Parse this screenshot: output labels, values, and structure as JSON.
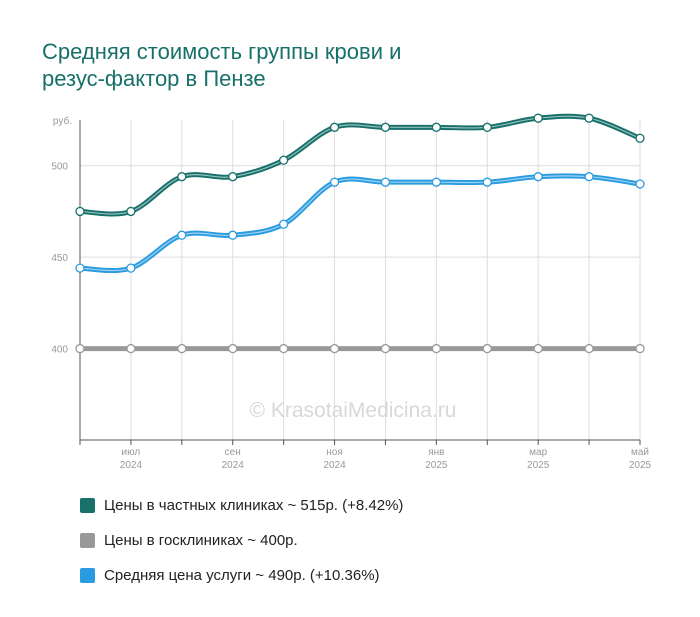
{
  "header": {
    "title_line1": "Средняя стоимость группы крови и",
    "title_line2": "резус-фактор в Пензе"
  },
  "watermark": "© KrasotaiMedicina.ru",
  "colors": {
    "private": "#17706a",
    "public": "#999999",
    "average": "#2a9be0",
    "title": "#17706a",
    "grid": "#dddddd"
  },
  "legend": {
    "items": [
      {
        "label": "Цены в частных клиниках ~ 515р. (+8.42%)",
        "color": "#17706a"
      },
      {
        "label": "Цены в госклиниках ~ 400р.",
        "color": "#999999"
      },
      {
        "label": "Средняя цена услуги ~ 490р. (+10.36%)",
        "color": "#2a9be0"
      }
    ]
  },
  "chart_data": {
    "type": "line",
    "y_unit": "руб.",
    "ylim": [
      350,
      525
    ],
    "y_ticks": [
      400,
      450,
      500
    ],
    "x": [
      "2024-06",
      "2024-07",
      "2024-08",
      "2024-09",
      "2024-10",
      "2024-11",
      "2024-12",
      "2025-01",
      "2025-02",
      "2025-03",
      "2025-04",
      "2025-05"
    ],
    "x_tick_labels": [
      {
        "month": "июл",
        "year": "2024",
        "index": 1
      },
      {
        "month": "сен",
        "year": "2024",
        "index": 3
      },
      {
        "month": "ноя",
        "year": "2024",
        "index": 5
      },
      {
        "month": "янв",
        "year": "2025",
        "index": 7
      },
      {
        "month": "мар",
        "year": "2025",
        "index": 9
      },
      {
        "month": "май",
        "year": "2025",
        "index": 11
      }
    ],
    "grid": true,
    "series": [
      {
        "name": "Цены в частных клиниках",
        "color": "#17706a",
        "values": [
          475,
          475,
          494,
          494,
          503,
          521,
          521,
          521,
          521,
          526,
          526,
          515
        ]
      },
      {
        "name": "Цены в госклиниках",
        "color": "#999999",
        "values": [
          400,
          400,
          400,
          400,
          400,
          400,
          400,
          400,
          400,
          400,
          400,
          400
        ]
      },
      {
        "name": "Средняя цена услуги",
        "color": "#2a9be0",
        "values": [
          444,
          444,
          462,
          462,
          468,
          491,
          491,
          491,
          491,
          494,
          494,
          490
        ]
      }
    ]
  }
}
